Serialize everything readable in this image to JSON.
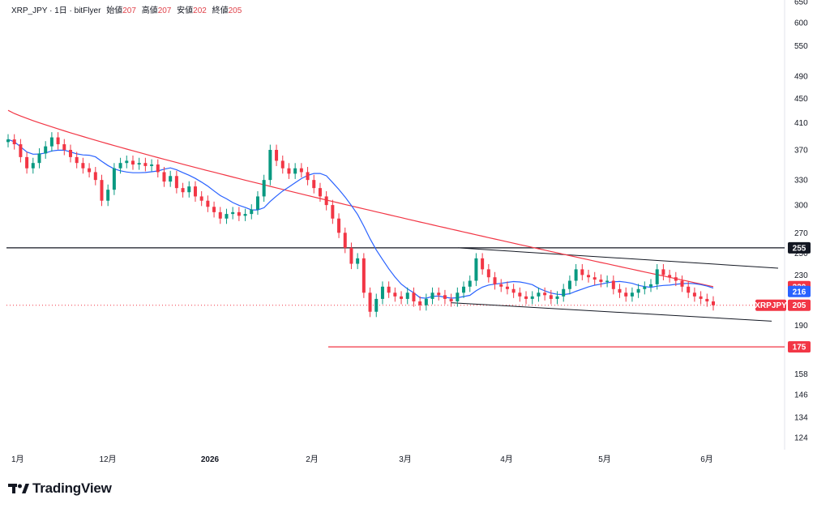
{
  "header": {
    "symbol": "XRP_JPY",
    "interval": "1日",
    "exchange": "bitFlyer",
    "open_label": "始値",
    "open": "207",
    "high_label": "高値",
    "high": "207",
    "low_label": "安値",
    "low": "202",
    "close_label": "終値",
    "close": "205"
  },
  "brand": {
    "name": "TradingView"
  },
  "chart_data": {
    "type": "candlestick",
    "y_ticks": [
      124,
      134,
      146,
      158,
      190,
      230,
      250,
      270,
      300,
      330,
      370,
      410,
      450,
      490,
      550,
      600,
      650
    ],
    "x_ticks": [
      "1月",
      "12月",
      "2026",
      "2月",
      "3月",
      "4月",
      "5月",
      "6月"
    ],
    "horizontal_lines": [
      {
        "value": 255,
        "color": "#131722",
        "label": "255"
      },
      {
        "value": 175,
        "color": "#f23645",
        "label": "175"
      }
    ],
    "price_badges": [
      {
        "label": "220",
        "color": "#f23645"
      },
      {
        "label": "216",
        "color": "#2962ff"
      },
      {
        "label": "205",
        "symbol": "XRPJPY",
        "color": "#f23645"
      }
    ],
    "channel": {
      "upper": [
        [
          0.0,
          255
        ],
        [
          1.0,
          236
        ]
      ],
      "lower": [
        [
          0.0,
          207
        ],
        [
          1.0,
          193
        ]
      ]
    },
    "ma_long_color": "#f23645",
    "ma_short_color": "#2962ff",
    "up_color": "#089981",
    "down_color": "#f23645",
    "candles_close": [
      385,
      378,
      360,
      345,
      352,
      365,
      375,
      388,
      378,
      370,
      360,
      352,
      345,
      340,
      330,
      305,
      318,
      345,
      352,
      355,
      350,
      352,
      348,
      350,
      340,
      328,
      335,
      320,
      315,
      322,
      310,
      305,
      298,
      292,
      285,
      290,
      292,
      288,
      290,
      295,
      310,
      330,
      370,
      355,
      345,
      338,
      345,
      340,
      330,
      320,
      310,
      300,
      285,
      270,
      255,
      240,
      245,
      215,
      200,
      210,
      220,
      215,
      212,
      210,
      215,
      208,
      205,
      210,
      215,
      213,
      210,
      208,
      215,
      220,
      225,
      245,
      235,
      228,
      222,
      220,
      218,
      215,
      212,
      210,
      212,
      215,
      213,
      210,
      212,
      218,
      225,
      235,
      230,
      228,
      226,
      224,
      225,
      218,
      215,
      212,
      215,
      218,
      220,
      222,
      235,
      230,
      228,
      225,
      220,
      215,
      212,
      210,
      208,
      205
    ]
  }
}
